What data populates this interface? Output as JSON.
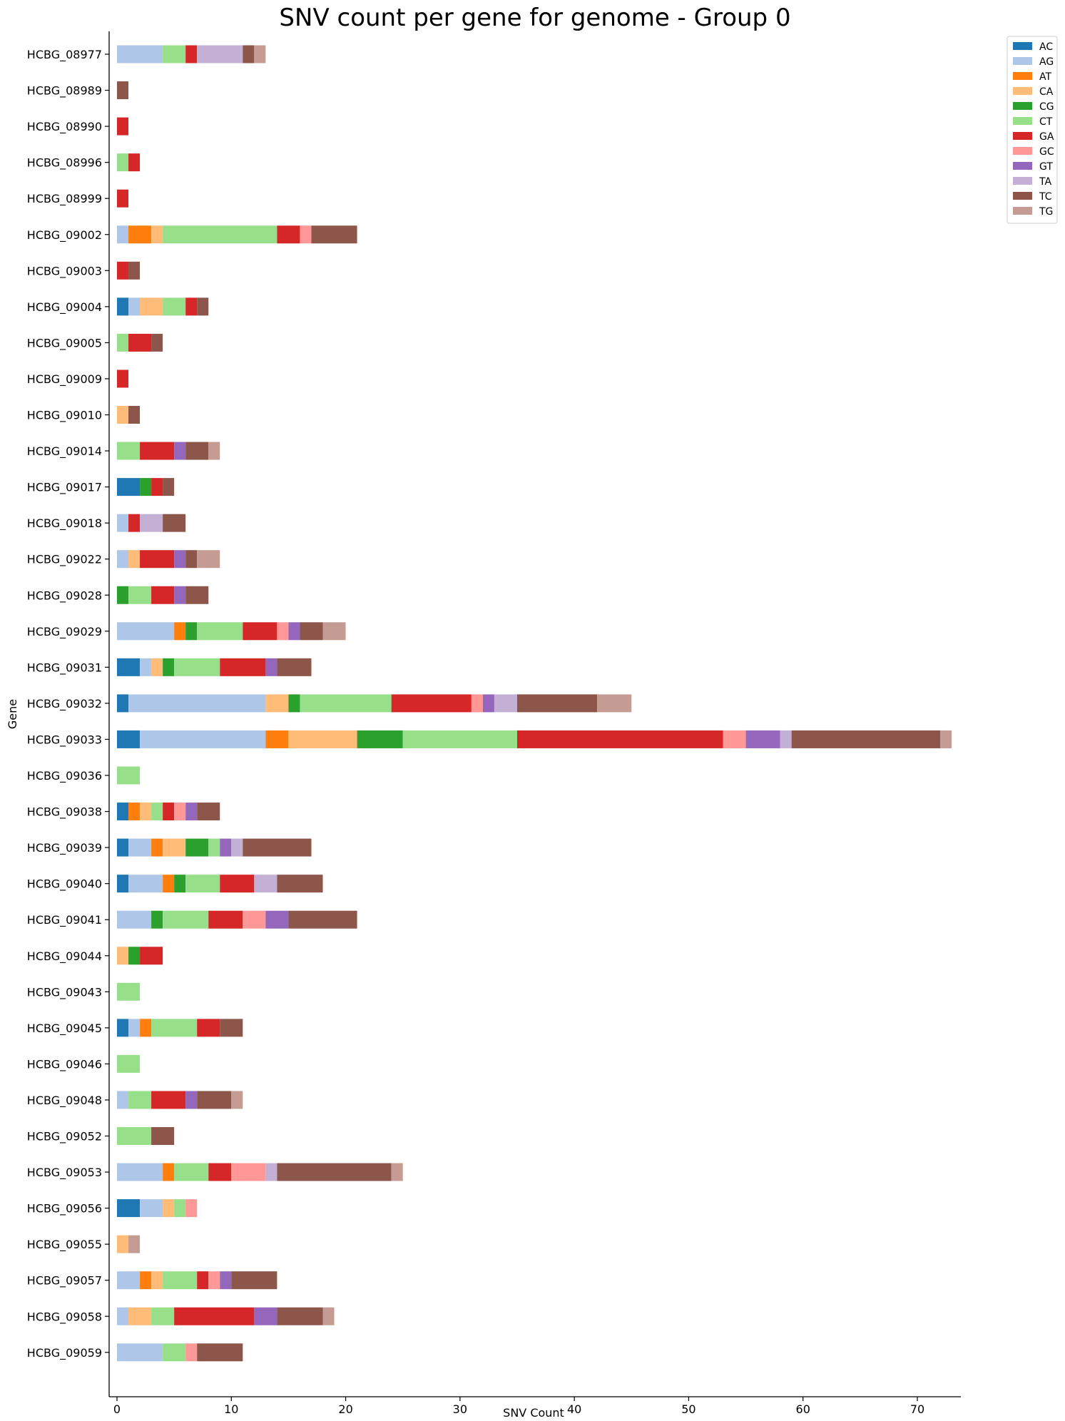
{
  "chart_data": {
    "type": "bar",
    "orientation": "horizontal",
    "stacked": true,
    "title": "SNV count per gene for genome - Group 0",
    "xlabel": "SNV Count",
    "ylabel": "Gene",
    "xlim": [
      0,
      73.5
    ],
    "xticks": [
      0,
      10,
      20,
      30,
      40,
      50,
      60,
      70
    ],
    "grid": false,
    "legend_position": "top-right, outside",
    "categories": [
      "HCBG_08977",
      "HCBG_08989",
      "HCBG_08990",
      "HCBG_08996",
      "HCBG_08999",
      "HCBG_09002",
      "HCBG_09003",
      "HCBG_09004",
      "HCBG_09005",
      "HCBG_09009",
      "HCBG_09010",
      "HCBG_09014",
      "HCBG_09017",
      "HCBG_09018",
      "HCBG_09022",
      "HCBG_09028",
      "HCBG_09029",
      "HCBG_09031",
      "HCBG_09032",
      "HCBG_09033",
      "HCBG_09036",
      "HCBG_09038",
      "HCBG_09039",
      "HCBG_09040",
      "HCBG_09041",
      "HCBG_09044",
      "HCBG_09043",
      "HCBG_09045",
      "HCBG_09046",
      "HCBG_09048",
      "HCBG_09052",
      "HCBG_09053",
      "HCBG_09056",
      "HCBG_09055",
      "HCBG_09057",
      "HCBG_09058",
      "HCBG_09059"
    ],
    "series": [
      {
        "name": "AC",
        "color": "#1f77b4",
        "values": [
          0,
          0,
          0,
          0,
          0,
          0,
          0,
          1,
          0,
          0,
          0,
          0,
          2,
          0,
          0,
          0,
          0,
          2,
          1,
          2,
          0,
          1,
          1,
          1,
          0,
          0,
          0,
          1,
          0,
          0,
          0,
          0,
          2,
          0,
          0,
          0,
          0
        ]
      },
      {
        "name": "AG",
        "color": "#aec7e8",
        "values": [
          4,
          0,
          0,
          0,
          0,
          1,
          0,
          1,
          0,
          0,
          0,
          0,
          0,
          1,
          1,
          0,
          5,
          1,
          12,
          11,
          0,
          0,
          2,
          3,
          3,
          0,
          0,
          1,
          0,
          1,
          0,
          4,
          2,
          0,
          2,
          1,
          4
        ]
      },
      {
        "name": "AT",
        "color": "#ff7f0e",
        "values": [
          0,
          0,
          0,
          0,
          0,
          2,
          0,
          0,
          0,
          0,
          0,
          0,
          0,
          0,
          0,
          0,
          1,
          0,
          0,
          2,
          0,
          1,
          1,
          1,
          0,
          0,
          0,
          1,
          0,
          0,
          0,
          1,
          0,
          0,
          1,
          0,
          0
        ]
      },
      {
        "name": "CA",
        "color": "#ffbb78",
        "values": [
          0,
          0,
          0,
          0,
          0,
          1,
          0,
          2,
          0,
          0,
          1,
          0,
          0,
          0,
          1,
          0,
          0,
          1,
          2,
          6,
          0,
          1,
          2,
          0,
          0,
          1,
          0,
          0,
          0,
          0,
          0,
          0,
          1,
          1,
          1,
          2,
          0
        ]
      },
      {
        "name": "CG",
        "color": "#2ca02c",
        "values": [
          0,
          0,
          0,
          0,
          0,
          0,
          0,
          0,
          0,
          0,
          0,
          0,
          1,
          0,
          0,
          1,
          1,
          1,
          1,
          4,
          0,
          0,
          2,
          1,
          1,
          1,
          0,
          0,
          0,
          0,
          0,
          0,
          0,
          0,
          0,
          0,
          0
        ]
      },
      {
        "name": "CT",
        "color": "#98df8a",
        "values": [
          2,
          0,
          0,
          1,
          0,
          10,
          0,
          2,
          1,
          0,
          0,
          2,
          0,
          0,
          0,
          2,
          4,
          4,
          8,
          10,
          2,
          1,
          1,
          3,
          4,
          0,
          2,
          4,
          2,
          2,
          3,
          3,
          1,
          0,
          3,
          2,
          2
        ]
      },
      {
        "name": "GA",
        "color": "#d62728",
        "values": [
          1,
          0,
          1,
          1,
          1,
          2,
          1,
          1,
          2,
          1,
          0,
          3,
          1,
          1,
          3,
          2,
          3,
          4,
          7,
          18,
          0,
          1,
          0,
          3,
          3,
          2,
          0,
          2,
          0,
          3,
          0,
          2,
          0,
          0,
          1,
          7,
          0
        ]
      },
      {
        "name": "GC",
        "color": "#ff9896",
        "values": [
          0,
          0,
          0,
          0,
          0,
          1,
          0,
          0,
          0,
          0,
          0,
          0,
          0,
          0,
          0,
          0,
          1,
          0,
          1,
          2,
          0,
          1,
          0,
          0,
          2,
          0,
          0,
          0,
          0,
          0,
          0,
          3,
          1,
          0,
          1,
          0,
          1
        ]
      },
      {
        "name": "GT",
        "color": "#9467bd",
        "values": [
          0,
          0,
          0,
          0,
          0,
          0,
          0,
          0,
          0,
          0,
          0,
          1,
          0,
          0,
          1,
          1,
          1,
          1,
          1,
          3,
          0,
          1,
          1,
          0,
          2,
          0,
          0,
          0,
          0,
          1,
          0,
          0,
          0,
          0,
          1,
          2,
          0
        ]
      },
      {
        "name": "TA",
        "color": "#c5b0d5",
        "values": [
          4,
          0,
          0,
          0,
          0,
          0,
          0,
          0,
          0,
          0,
          0,
          0,
          0,
          2,
          0,
          0,
          0,
          0,
          2,
          1,
          0,
          0,
          1,
          2,
          0,
          0,
          0,
          0,
          0,
          0,
          0,
          1,
          0,
          0,
          0,
          0,
          0
        ]
      },
      {
        "name": "TC",
        "color": "#8c564b",
        "values": [
          1,
          1,
          0,
          0,
          0,
          4,
          1,
          1,
          1,
          0,
          1,
          2,
          1,
          2,
          1,
          2,
          2,
          3,
          7,
          13,
          0,
          2,
          6,
          4,
          6,
          0,
          0,
          2,
          0,
          3,
          2,
          10,
          0,
          0,
          4,
          4,
          4
        ]
      },
      {
        "name": "TG",
        "color": "#c49c94",
        "values": [
          1,
          0,
          0,
          0,
          0,
          0,
          0,
          0,
          0,
          0,
          0,
          1,
          0,
          0,
          2,
          0,
          2,
          0,
          3,
          1,
          0,
          0,
          0,
          0,
          0,
          0,
          0,
          0,
          0,
          1,
          0,
          1,
          0,
          1,
          0,
          1,
          0
        ]
      }
    ]
  }
}
